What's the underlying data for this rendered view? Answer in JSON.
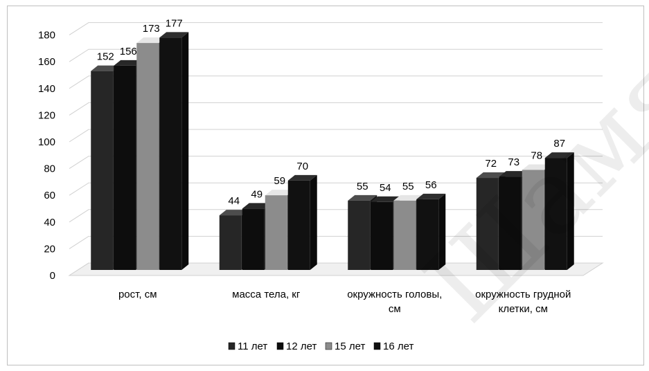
{
  "chart_data": {
    "type": "bar",
    "categories": [
      [
        "рост, см"
      ],
      [
        "масса тела, кг"
      ],
      [
        "окружность головы,",
        "см"
      ],
      [
        "окружность грудной",
        "клетки, см"
      ]
    ],
    "series": [
      {
        "name": "11 лет",
        "values": [
          152,
          44,
          55,
          72
        ],
        "color": "#262626"
      },
      {
        "name": "12 лет",
        "values": [
          156,
          49,
          54,
          73
        ],
        "color": "#0d0d0d"
      },
      {
        "name": "15 лет",
        "values": [
          173,
          59,
          55,
          78
        ],
        "color": "#8c8c8c"
      },
      {
        "name": "16 лет",
        "values": [
          177,
          70,
          56,
          87
        ],
        "color": "#111111"
      }
    ],
    "yticks": [
      0,
      20,
      40,
      60,
      80,
      100,
      120,
      140,
      160,
      180
    ],
    "ylim": [
      0,
      190
    ],
    "grid": true,
    "legend_position": "bottom",
    "style": "3d-columns"
  },
  "watermark": "Шамяк"
}
